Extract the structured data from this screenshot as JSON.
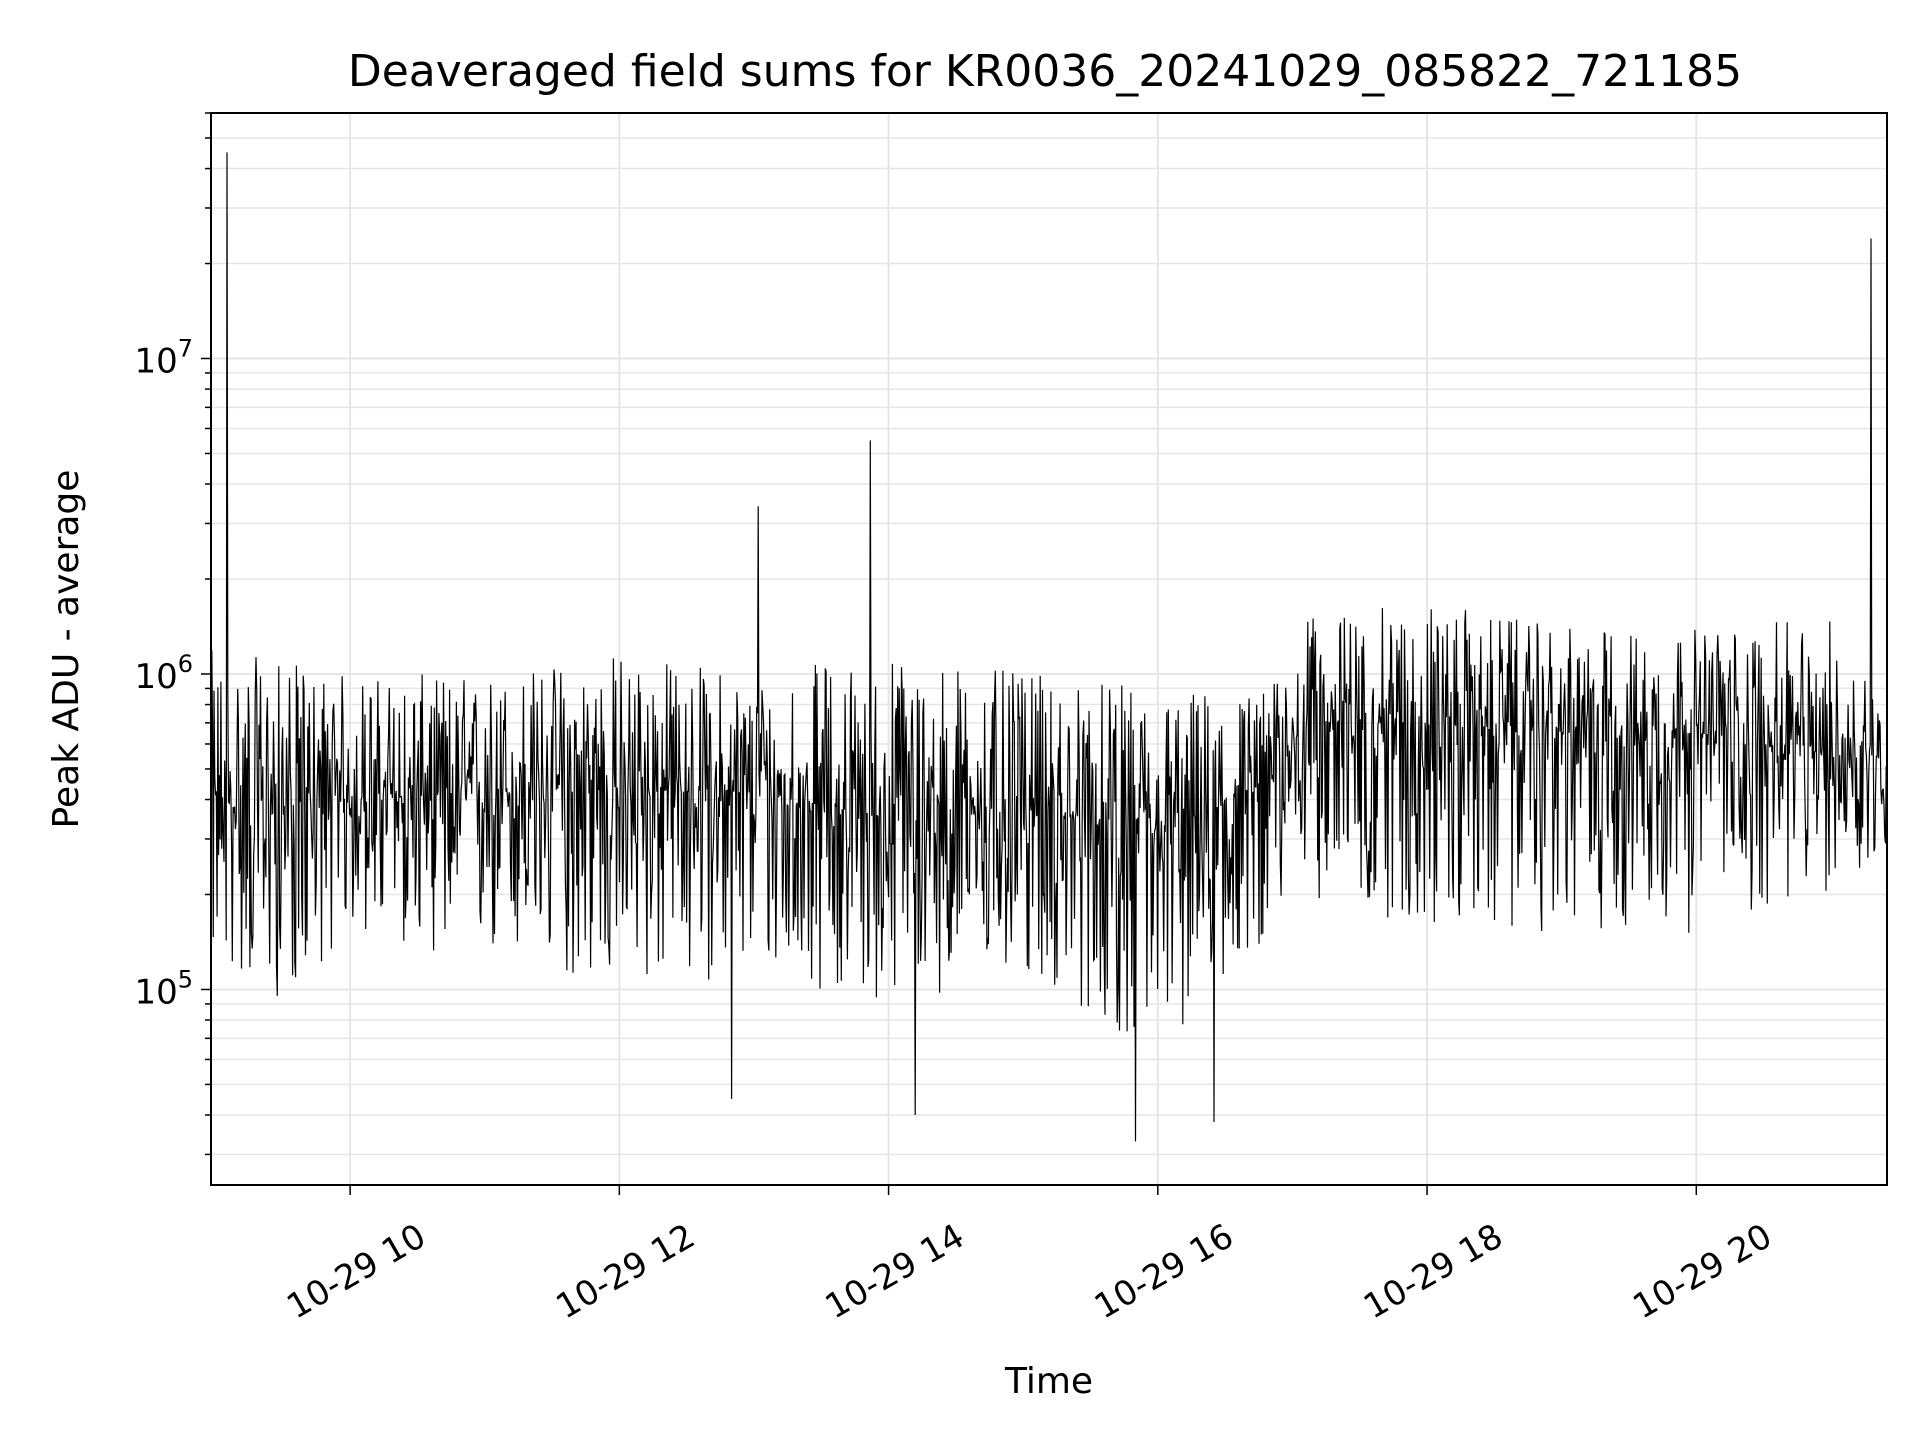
{
  "chart_data": {
    "type": "line",
    "title": "Deaveraged field sums for KR0036_20241029_085822_721185",
    "xlabel": "Time",
    "ylabel": "Peak ADU - average",
    "x_range": [
      "2024-10-29 08:58",
      "2024-10-29 21:25"
    ],
    "xticks": [
      "10-29 10",
      "10-29 12",
      "10-29 14",
      "10-29 16",
      "10-29 18",
      "10-29 20"
    ],
    "y_scale": "log",
    "ylim": [
      24000,
      60000000
    ],
    "yticks": [
      {
        "value": 100000,
        "base": "10",
        "exp": "5"
      },
      {
        "value": 1000000,
        "base": "10",
        "exp": "6"
      },
      {
        "value": 10000000,
        "base": "10",
        "exp": "7"
      }
    ],
    "grid": true,
    "line_color": "#000000",
    "grid_color": "#e6e6e6",
    "series": [
      {
        "values_envelope": [
          {
            "time": "08:58",
            "median": 380000,
            "low": 120000,
            "high": 1200000
          },
          {
            "time": "09:30",
            "median": 380000,
            "low": 90000,
            "high": 1100000
          },
          {
            "time": "10:00",
            "median": 400000,
            "low": 150000,
            "high": 1000000
          },
          {
            "time": "11:00",
            "median": 420000,
            "low": 120000,
            "high": 1000000
          },
          {
            "time": "12:00",
            "median": 430000,
            "low": 100000,
            "high": 1200000
          },
          {
            "time": "13:00",
            "median": 420000,
            "low": 110000,
            "high": 1000000
          },
          {
            "time": "14:00",
            "median": 350000,
            "low": 90000,
            "high": 1200000
          },
          {
            "time": "15:00",
            "median": 380000,
            "low": 110000,
            "high": 1000000
          },
          {
            "time": "16:00",
            "median": 300000,
            "low": 60000,
            "high": 900000
          },
          {
            "time": "16:50",
            "median": 450000,
            "low": 150000,
            "high": 900000
          },
          {
            "time": "17:05",
            "median": 700000,
            "low": 200000,
            "high": 1500000
          },
          {
            "time": "18:00",
            "median": 700000,
            "low": 150000,
            "high": 1700000
          },
          {
            "time": "19:00",
            "median": 650000,
            "low": 150000,
            "high": 1400000
          },
          {
            "time": "20:00",
            "median": 650000,
            "low": 150000,
            "high": 1400000
          },
          {
            "time": "21:00",
            "median": 550000,
            "low": 200000,
            "high": 1500000
          },
          {
            "time": "21:25",
            "median": 550000,
            "low": 250000,
            "high": 900000
          }
        ],
        "spikes": [
          {
            "time": "09:05",
            "value": 45000000
          },
          {
            "time": "13:02",
            "value": 3400000
          },
          {
            "time": "13:52",
            "value": 5500000
          },
          {
            "time": "21:18",
            "value": 24000000
          },
          {
            "time": "15:50",
            "value": 33000
          },
          {
            "time": "14:12",
            "value": 40000
          },
          {
            "time": "16:25",
            "value": 38000
          },
          {
            "time": "12:50",
            "value": 45000
          }
        ]
      }
    ]
  }
}
